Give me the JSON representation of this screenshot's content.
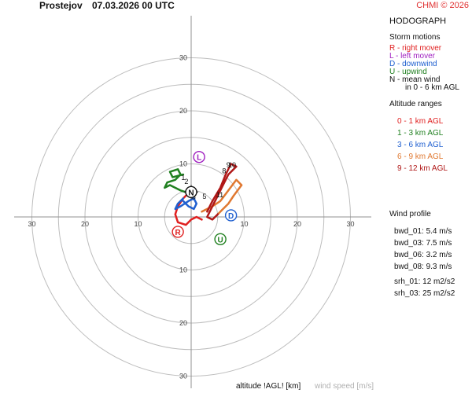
{
  "header": {
    "station": "Prostejov",
    "datetime": "07.03.2026 00 UTC",
    "credit": "CHMI © 2026"
  },
  "panel": {
    "title": "HODOGRAPH",
    "storm_motions_title": "Storm motions",
    "storm_motions": [
      {
        "text": "R - right mover",
        "color": "#e02020"
      },
      {
        "text": "L - left mover",
        "color": "#a020c0"
      },
      {
        "text": "D - downwind",
        "color": "#2060d0"
      },
      {
        "text": "U - upwind",
        "color": "#208020"
      },
      {
        "text": "N - mean wind",
        "color": "#111111"
      },
      {
        "text": "in 0 - 6 km AGL",
        "color": "#111111"
      }
    ],
    "altitude_title": "Altitude ranges",
    "altitudes": [
      {
        "text": "0 - 1 km AGL",
        "color": "#e02020"
      },
      {
        "text": "1 - 3 km AGL",
        "color": "#208020"
      },
      {
        "text": "3 - 6 km AGL",
        "color": "#2060d0"
      },
      {
        "text": "6 - 9 km AGL",
        "color": "#e07830"
      },
      {
        "text": "9 - 12 km AGL",
        "color": "#b01818"
      }
    ],
    "wind_profile_title": "Wind profile",
    "wind_profile": [
      "bwd_01: 5.4 m/s",
      "bwd_03: 7.5 m/s",
      "bwd_06: 3.2 m/s",
      "bwd_08: 9.3 m/s",
      "srh_01: 12 m2/s2",
      "srh_03: 25 m2/s2"
    ]
  },
  "footer": {
    "altitude_label": "altitude !AGL! [km]",
    "speed_label": "wind speed [m/s]"
  },
  "chart_data": {
    "type": "line",
    "rings": [
      5,
      10,
      15,
      20,
      25,
      30
    ],
    "ring_labels": [
      10,
      20,
      30
    ],
    "x_tick_labels": [
      "30",
      "20",
      "10",
      "10",
      "20",
      "30"
    ],
    "y_tick_labels": [
      "30",
      "20",
      "10",
      "10",
      "20",
      "30"
    ],
    "series": [
      {
        "color": "#e02020",
        "points": [
          [
            2,
            -0.5
          ],
          [
            1,
            0
          ],
          [
            0,
            -0.5
          ],
          [
            -1,
            -1.5
          ],
          [
            -2.5,
            -1
          ],
          [
            -3,
            0.5
          ],
          [
            -2.5,
            2
          ],
          [
            -1.5,
            3.5
          ],
          [
            -0.5,
            4.5
          ]
        ]
      },
      {
        "color": "#208020",
        "points": [
          [
            -0.5,
            4.5
          ],
          [
            -2,
            5
          ],
          [
            -4,
            6
          ],
          [
            -5,
            5.5
          ],
          [
            -4.5,
            6.5
          ],
          [
            -3,
            7
          ],
          [
            -2,
            8
          ],
          [
            -2.5,
            9
          ],
          [
            -4,
            8.5
          ],
          [
            -3.5,
            7.5
          ],
          [
            -1.5,
            8
          ]
        ]
      },
      {
        "color": "#2060d0",
        "points": [
          [
            -1.5,
            3
          ],
          [
            -0.5,
            2
          ],
          [
            0.5,
            1.5
          ],
          [
            1,
            2.5
          ],
          [
            0.5,
            3.5
          ],
          [
            -0.5,
            3
          ],
          [
            -2,
            2
          ],
          [
            -3,
            1.5
          ],
          [
            -2.5,
            2.5
          ],
          [
            -1.5,
            3.5
          ]
        ]
      },
      {
        "color": "#e07830",
        "points": [
          [
            2,
            1
          ],
          [
            4,
            2
          ],
          [
            5.5,
            3
          ],
          [
            7,
            5
          ],
          [
            8.5,
            7
          ],
          [
            9.5,
            6
          ],
          [
            8,
            4
          ],
          [
            7,
            2.5
          ],
          [
            6,
            1.5
          ],
          [
            5,
            0.5
          ]
        ]
      },
      {
        "color": "#b01818",
        "points": [
          [
            5,
            0.5
          ],
          [
            4,
            -0.5
          ],
          [
            3,
            0
          ],
          [
            4,
            2
          ],
          [
            5,
            4
          ],
          [
            6,
            6
          ],
          [
            7,
            8
          ],
          [
            8.5,
            9.5
          ],
          [
            7.5,
            10
          ],
          [
            6.5,
            8
          ],
          [
            5.5,
            5.5
          ],
          [
            4,
            3
          ],
          [
            3,
            1
          ]
        ]
      }
    ],
    "markers": [
      {
        "label": "R",
        "u": -2.5,
        "v": -2.8,
        "color": "#e02020"
      },
      {
        "label": "L",
        "u": 1.5,
        "v": 11.3,
        "color": "#a020c0"
      },
      {
        "label": "D",
        "u": 7.5,
        "v": 0.3,
        "color": "#2060d0"
      },
      {
        "label": "U",
        "u": 5.5,
        "v": -4.2,
        "color": "#208020"
      },
      {
        "label": "N",
        "u": 0,
        "v": 4.7,
        "color": "#111111"
      }
    ],
    "altitude_labels": [
      {
        "text": "1",
        "u": -1.5,
        "v": 7.0
      },
      {
        "text": "2",
        "u": -0.9,
        "v": 6.2
      },
      {
        "text": "3",
        "u": 0.5,
        "v": 3.3
      },
      {
        "text": "5",
        "u": 2.5,
        "v": 3.4
      },
      {
        "text": "11",
        "u": 5.4,
        "v": 3.7
      },
      {
        "text": "8",
        "u": 6.2,
        "v": 8.2
      },
      {
        "text": "9",
        "u": 7.0,
        "v": 9.3
      },
      {
        "text": "10",
        "u": 7.7,
        "v": 9.3
      }
    ]
  }
}
